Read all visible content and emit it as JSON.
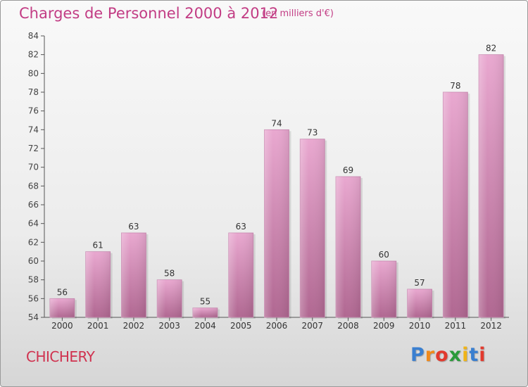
{
  "header": {
    "title": "Charges de Personnel 2000 à 2012",
    "subtitle": "(en milliers d'€)"
  },
  "footer": {
    "commune": "CHICHERY",
    "logo_text": "Proxiti"
  },
  "colors": {
    "bar_top": "#e9a8d0",
    "bar_bottom": "#b06791",
    "accent": "#c23c84",
    "commune": "#d0324f"
  },
  "chart_data": {
    "type": "bar",
    "title": "Charges de Personnel 2000 à 2012",
    "subtitle": "(en milliers d'€)",
    "xlabel": "",
    "ylabel": "",
    "categories": [
      "2000",
      "2001",
      "2002",
      "2003",
      "2004",
      "2005",
      "2006",
      "2007",
      "2008",
      "2009",
      "2010",
      "2011",
      "2012"
    ],
    "values": [
      56,
      61,
      63,
      58,
      55,
      63,
      74,
      73,
      69,
      60,
      57,
      78,
      82
    ],
    "ylim": [
      54,
      84
    ],
    "yticks": [
      54,
      56,
      58,
      60,
      62,
      64,
      66,
      68,
      70,
      72,
      74,
      76,
      78,
      80,
      82,
      84
    ],
    "grid": false,
    "legend": "none"
  }
}
